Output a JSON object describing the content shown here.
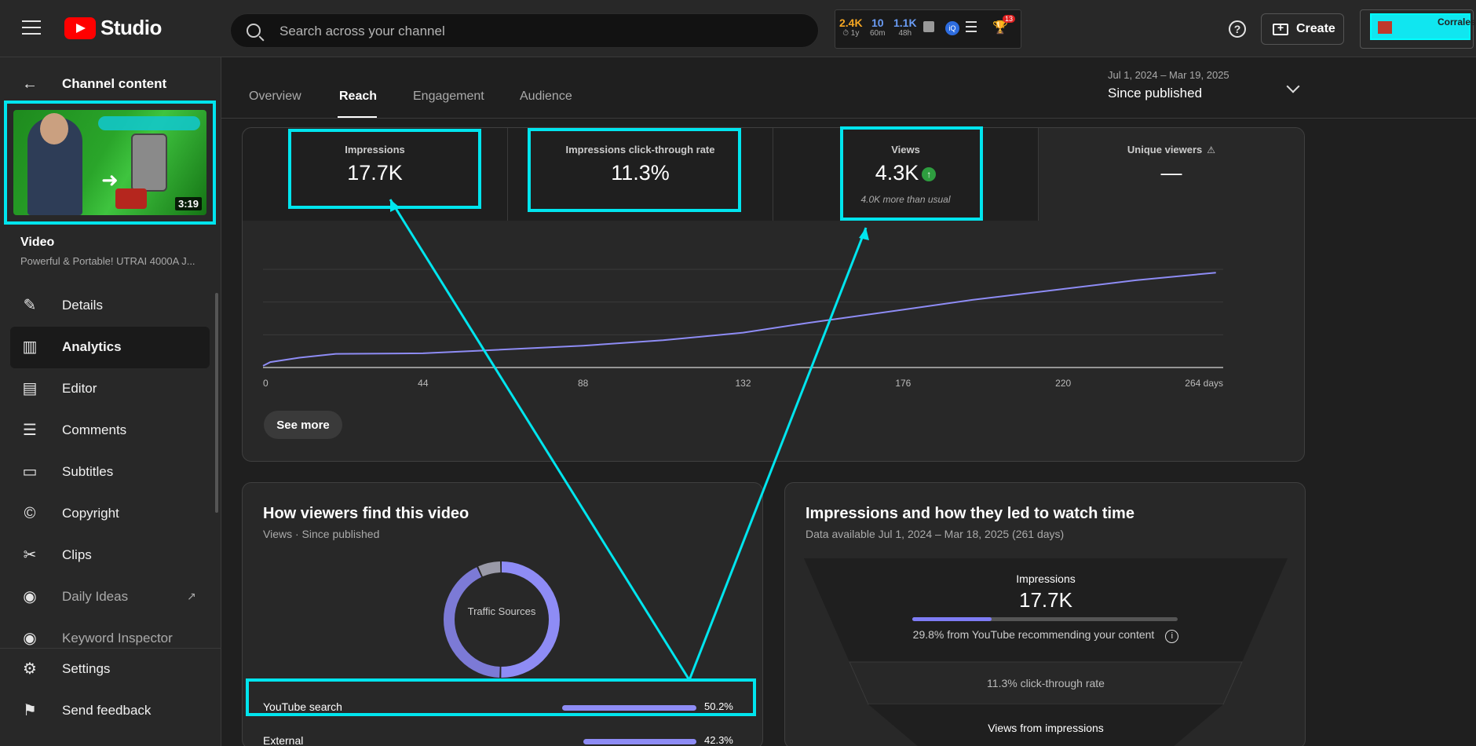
{
  "header": {
    "logo_text": "Studio",
    "search_placeholder": "Search across your channel",
    "stats": [
      {
        "value": "2.4K",
        "label": "⏱ 1y"
      },
      {
        "value": "10",
        "label": "60m"
      },
      {
        "value": "1.1K",
        "label": "48h"
      }
    ],
    "notification_count": "13",
    "create_label": "Create",
    "account_name": "Corrales"
  },
  "sidebar": {
    "back_title": "Channel content",
    "thumbnail_duration": "3:19",
    "video_label": "Video",
    "video_title": "Powerful & Portable! UTRAI 4000A J...",
    "items": [
      {
        "label": "Details",
        "icon": "pencil-icon"
      },
      {
        "label": "Analytics",
        "icon": "analytics-icon"
      },
      {
        "label": "Editor",
        "icon": "clapper-icon"
      },
      {
        "label": "Comments",
        "icon": "comment-icon"
      },
      {
        "label": "Subtitles",
        "icon": "subtitles-icon"
      },
      {
        "label": "Copyright",
        "icon": "copyright-icon"
      },
      {
        "label": "Clips",
        "icon": "scissors-icon"
      },
      {
        "label": "Daily Ideas",
        "icon": "vidiq-icon"
      },
      {
        "label": "Keyword Inspector",
        "icon": "vidiq-icon"
      }
    ],
    "bottom_items": [
      {
        "label": "Settings",
        "icon": "gear-icon"
      },
      {
        "label": "Send feedback",
        "icon": "feedback-icon"
      }
    ]
  },
  "tabs": [
    "Overview",
    "Reach",
    "Engagement",
    "Audience"
  ],
  "active_tab": "Reach",
  "date_picker": {
    "range": "Jul 1, 2024 – Mar 19, 2025",
    "label": "Since published"
  },
  "metrics": [
    {
      "title": "Impressions",
      "value": "17.7K",
      "note": ""
    },
    {
      "title": "Impressions click-through rate",
      "value": "11.3%",
      "note": ""
    },
    {
      "title": "Views",
      "value": "4.3K",
      "note": "4.0K more than usual"
    },
    {
      "title": "Unique viewers",
      "value": "—",
      "note": ""
    }
  ],
  "chart_data": {
    "type": "line",
    "x_ticks": [
      "0",
      "44",
      "88",
      "132",
      "176",
      "220",
      "264 days"
    ],
    "y_ticks": [
      "0",
      "6.0K",
      "12.0K",
      "18.0K"
    ],
    "ylim": [
      0,
      18000
    ],
    "xlim": [
      0,
      264
    ],
    "series": [
      {
        "x": [
          0,
          2,
          10,
          20,
          44,
          60,
          88,
          110,
          132,
          150,
          176,
          195,
          220,
          240,
          262
        ],
        "values": [
          300,
          1000,
          1800,
          2500,
          2600,
          3100,
          4000,
          5000,
          6400,
          8200,
          10600,
          12400,
          14400,
          16000,
          17400
        ]
      }
    ],
    "color": "#8e8cf5",
    "grid": true
  },
  "see_more_label": "See more",
  "traffic": {
    "title": "How viewers find this video",
    "subtitle": "Views · Since published",
    "donut_label": "Traffic Sources",
    "sources": [
      {
        "label": "YouTube search",
        "value": "50.2%",
        "fraction": 0.502
      },
      {
        "label": "External",
        "value": "42.3%",
        "fraction": 0.423
      }
    ]
  },
  "funnel": {
    "title": "Impressions and how they led to watch time",
    "subtitle": "Data available Jul 1, 2024 – Mar 18, 2025 (261 days)",
    "impressions_label": "Impressions",
    "impressions_value": "17.7K",
    "recommend_text": "29.8% from YouTube recommending your content",
    "recommend_fraction": 0.298,
    "ctr_text": "11.3% click-through rate",
    "views_label": "Views from impressions"
  },
  "colors": {
    "accent": "#8e8cf5",
    "highlight": "#00e5ee",
    "positive": "#2e9d3f"
  }
}
